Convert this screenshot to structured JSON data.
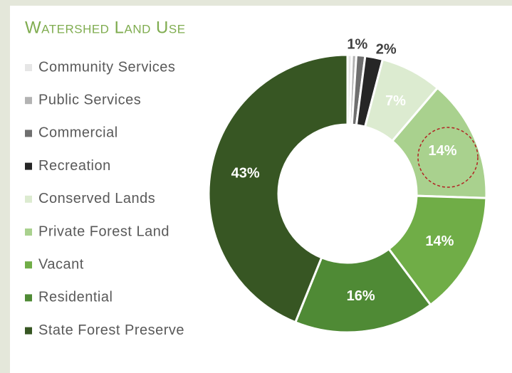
{
  "chart_data": {
    "type": "donut",
    "title": "Watershed Land Use",
    "categories": [
      "Community Services",
      "Public Services",
      "Commercial",
      "Recreation",
      "Conserved Lands",
      "Private Forest Land",
      "Vacant",
      "Residential",
      "State Forest Preserve"
    ],
    "values": [
      0.5,
      0.5,
      1,
      2,
      7,
      14,
      14,
      16,
      43
    ],
    "value_labels": [
      null,
      null,
      "1%",
      "2%",
      "7%",
      "14%",
      "14%",
      "16%",
      "43%"
    ],
    "colors": [
      "#e6e6e6",
      "#b3b3b3",
      "#6f6f6f",
      "#262626",
      "#dcebd0",
      "#a9d18e",
      "#70ad47",
      "#4f8a35",
      "#375623"
    ],
    "legend": "left"
  }
}
